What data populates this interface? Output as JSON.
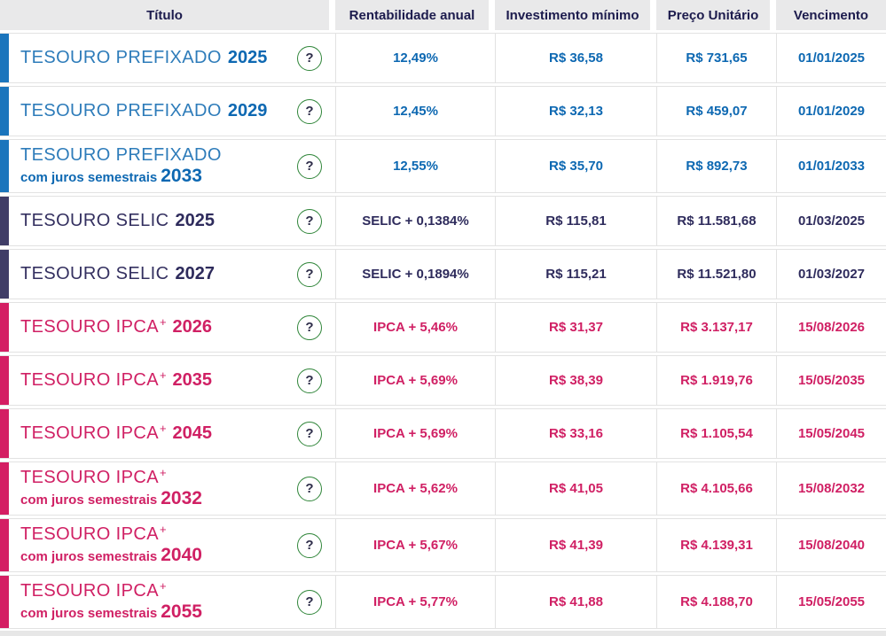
{
  "table": {
    "headers": [
      "Título",
      "Rentabilidade anual",
      "Investimento mínimo",
      "Preço Unitário",
      "Vencimento"
    ],
    "help_icon": "?",
    "rows": [
      {
        "group": "prefixado",
        "title_main": "TESOURO PREFIXADO",
        "title_sup": "",
        "title_sub": "",
        "year": "2025",
        "rate": "12,49%",
        "min_investment": "R$ 36,58",
        "unit_price": "R$ 731,65",
        "maturity": "01/01/2025"
      },
      {
        "group": "prefixado",
        "title_main": "TESOURO PREFIXADO",
        "title_sup": "",
        "title_sub": "",
        "year": "2029",
        "rate": "12,45%",
        "min_investment": "R$ 32,13",
        "unit_price": "R$ 459,07",
        "maturity": "01/01/2029"
      },
      {
        "group": "prefixado",
        "title_main": "TESOURO PREFIXADO",
        "title_sup": "",
        "title_sub": "com juros semestrais",
        "year": "2033",
        "rate": "12,55%",
        "min_investment": "R$ 35,70",
        "unit_price": "R$ 892,73",
        "maturity": "01/01/2033"
      },
      {
        "group": "selic",
        "title_main": "TESOURO SELIC",
        "title_sup": "",
        "title_sub": "",
        "year": "2025",
        "rate": "SELIC + 0,1384%",
        "min_investment": "R$ 115,81",
        "unit_price": "R$ 11.581,68",
        "maturity": "01/03/2025"
      },
      {
        "group": "selic",
        "title_main": "TESOURO SELIC",
        "title_sup": "",
        "title_sub": "",
        "year": "2027",
        "rate": "SELIC + 0,1894%",
        "min_investment": "R$ 115,21",
        "unit_price": "R$ 11.521,80",
        "maturity": "01/03/2027"
      },
      {
        "group": "ipca",
        "title_main": "TESOURO IPCA",
        "title_sup": "+",
        "title_sub": "",
        "year": "2026",
        "rate": "IPCA + 5,46%",
        "min_investment": "R$ 31,37",
        "unit_price": "R$ 3.137,17",
        "maturity": "15/08/2026"
      },
      {
        "group": "ipca",
        "title_main": "TESOURO IPCA",
        "title_sup": "+",
        "title_sub": "",
        "year": "2035",
        "rate": "IPCA + 5,69%",
        "min_investment": "R$ 38,39",
        "unit_price": "R$ 1.919,76",
        "maturity": "15/05/2035"
      },
      {
        "group": "ipca",
        "title_main": "TESOURO IPCA",
        "title_sup": "+",
        "title_sub": "",
        "year": "2045",
        "rate": "IPCA + 5,69%",
        "min_investment": "R$ 33,16",
        "unit_price": "R$ 1.105,54",
        "maturity": "15/05/2045"
      },
      {
        "group": "ipca",
        "title_main": "TESOURO IPCA",
        "title_sup": "+",
        "title_sub": "com juros semestrais",
        "year": "2032",
        "rate": "IPCA + 5,62%",
        "min_investment": "R$ 41,05",
        "unit_price": "R$ 4.105,66",
        "maturity": "15/08/2032"
      },
      {
        "group": "ipca",
        "title_main": "TESOURO IPCA",
        "title_sup": "+",
        "title_sub": "com juros semestrais",
        "year": "2040",
        "rate": "IPCA + 5,67%",
        "min_investment": "R$ 41,39",
        "unit_price": "R$ 4.139,31",
        "maturity": "15/08/2040"
      },
      {
        "group": "ipca",
        "title_main": "TESOURO IPCA",
        "title_sup": "+",
        "title_sub": "com juros semestrais",
        "year": "2055",
        "rate": "IPCA + 5,77%",
        "min_investment": "R$ 41,88",
        "unit_price": "R$ 4.188,70",
        "maturity": "15/05/2055"
      }
    ]
  },
  "colors": {
    "prefixado_accent": "#1b75bc",
    "prefixado_title": "#2e7cba",
    "prefixado_value": "#0d68b2",
    "selic_accent": "#403d67",
    "selic_title": "#343060",
    "selic_value": "#2e2b5c",
    "ipca_accent": "#d41e63",
    "ipca_title": "#d02064",
    "ipca_value": "#d02064",
    "header_bg": "#e9e9ea",
    "header_text": "#1c1b4d",
    "help_ring": "#2f8539",
    "help_mark": "#2d2c49",
    "row_border": "#e2e2e2",
    "bottom_strip": "#e7e7e7"
  }
}
